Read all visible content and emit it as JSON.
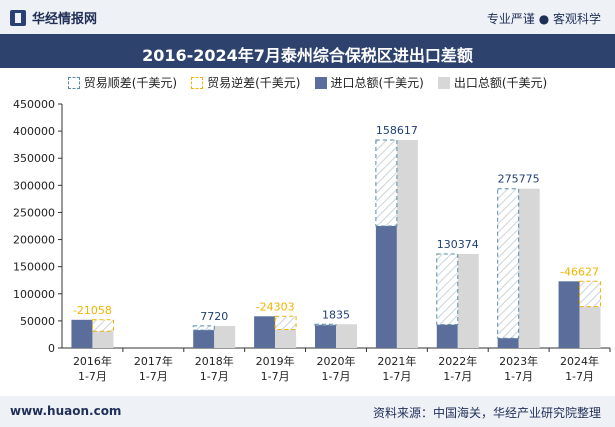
{
  "header": {
    "brand": "华经情报网",
    "tagline": "专业严谨 ● 客观科学"
  },
  "footer": {
    "website": "www.huaon.com",
    "source": "资料来源：中国海关，华经产业研究院整理"
  },
  "colors": {
    "surplus_border": "#5a8aa6",
    "deficit_border": "#f0b400",
    "import": "#5b6d9b",
    "export": "#d7d7d7",
    "deficit_label": "#f0b400",
    "surplus_label": "#1f3f73"
  },
  "chart_data": {
    "type": "bar",
    "title": "2016-2024年7月泰州综合保税区进出口差额",
    "categories": [
      "2016年\n1-7月",
      "2017年\n1-7月",
      "2018年\n1-7月",
      "2019年\n1-7月",
      "2020年\n1-7月",
      "2021年\n1-7月",
      "2022年\n1-7月",
      "2023年\n1-7月",
      "2024年\n1-7月"
    ],
    "legend": [
      "贸易顺差(千美元)",
      "贸易逆差(千美元)",
      "进口总额(千美元)",
      "出口总额(千美元)"
    ],
    "legend_position": "top",
    "ylim": [
      0,
      450000
    ],
    "yticks": [
      0,
      50000,
      100000,
      150000,
      200000,
      250000,
      300000,
      350000,
      400000,
      450000
    ],
    "grid": false,
    "series": [
      {
        "name": "进口总额(千美元)",
        "values": [
          52000,
          0,
          33000,
          58500,
          42000,
          225000,
          43000,
          18000,
          123000
        ]
      },
      {
        "name": "出口总额(千美元)",
        "values": [
          31000,
          0,
          40700,
          34200,
          43800,
          383600,
          173400,
          293800,
          76400
        ]
      }
    ],
    "balance": [
      -21058,
      null,
      7720,
      -24303,
      1835,
      158617,
      130374,
      275775,
      -46627
    ],
    "balance_labels": [
      "-21058",
      "",
      "7720",
      "-24303",
      "1835",
      "158617",
      "130374",
      "275775",
      "-46627"
    ]
  }
}
